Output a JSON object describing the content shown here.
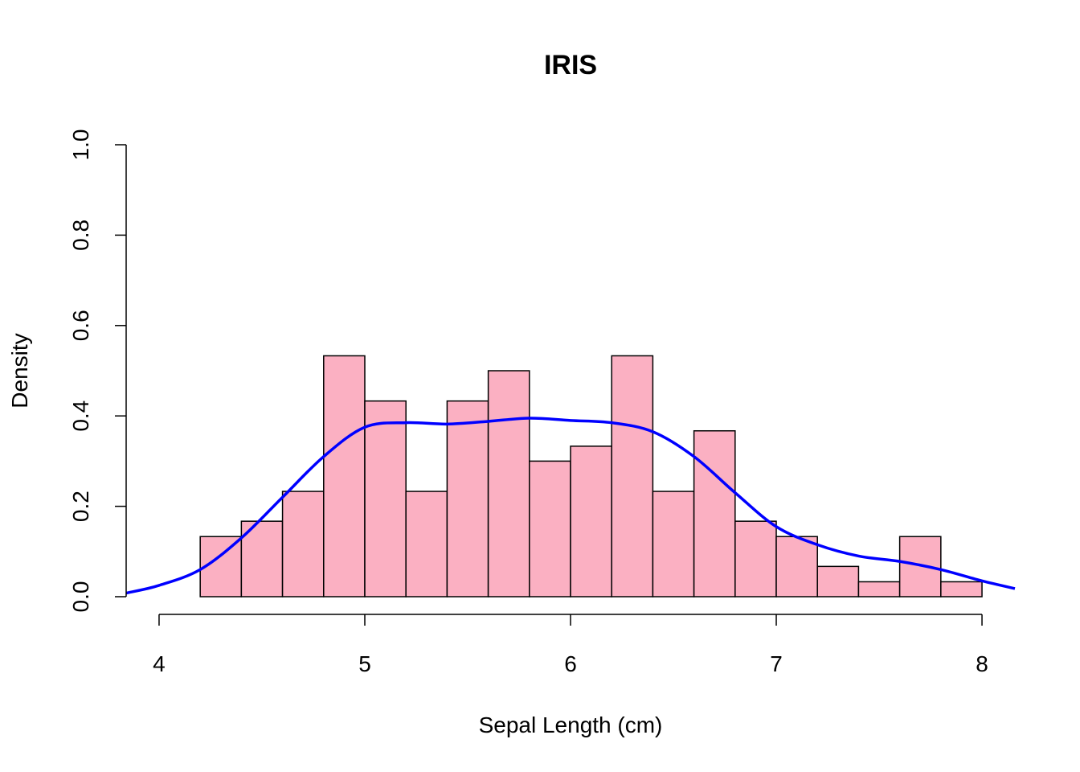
{
  "chart_data": {
    "type": "histogram",
    "title": "IRIS",
    "xlabel": "Sepal Length (cm)",
    "ylabel": "Density",
    "xlim": [
      3.84,
      8.16
    ],
    "ylim": [
      0.0,
      1.0
    ],
    "x_ticks": [
      4,
      5,
      6,
      7,
      8
    ],
    "y_ticks": [
      0.0,
      0.2,
      0.4,
      0.6,
      0.8,
      1.0
    ],
    "bins": {
      "edges": [
        4.2,
        4.4,
        4.6,
        4.8,
        5.0,
        5.2,
        5.4,
        5.6,
        5.8,
        6.0,
        6.2,
        6.4,
        6.6,
        6.8,
        7.0,
        7.2,
        7.4,
        7.6,
        7.8,
        8.0
      ],
      "density": [
        0.133,
        0.167,
        0.233,
        0.533,
        0.433,
        0.233,
        0.433,
        0.5,
        0.3,
        0.333,
        0.533,
        0.233,
        0.367,
        0.167,
        0.133,
        0.067,
        0.033,
        0.133,
        0.033
      ]
    },
    "density_curve": {
      "x": [
        3.84,
        4.0,
        4.2,
        4.4,
        4.6,
        4.8,
        5.0,
        5.2,
        5.4,
        5.6,
        5.8,
        6.0,
        6.2,
        6.4,
        6.6,
        6.8,
        7.0,
        7.2,
        7.4,
        7.6,
        7.8,
        8.0,
        8.16
      ],
      "y": [
        0.008,
        0.025,
        0.06,
        0.13,
        0.22,
        0.31,
        0.375,
        0.385,
        0.382,
        0.388,
        0.395,
        0.39,
        0.385,
        0.365,
        0.31,
        0.23,
        0.155,
        0.115,
        0.09,
        0.078,
        0.06,
        0.035,
        0.018
      ]
    },
    "colors": {
      "bar_fill": "#FBB0C2",
      "bar_stroke": "#000000",
      "curve": "#0000FF"
    },
    "grid": false
  }
}
